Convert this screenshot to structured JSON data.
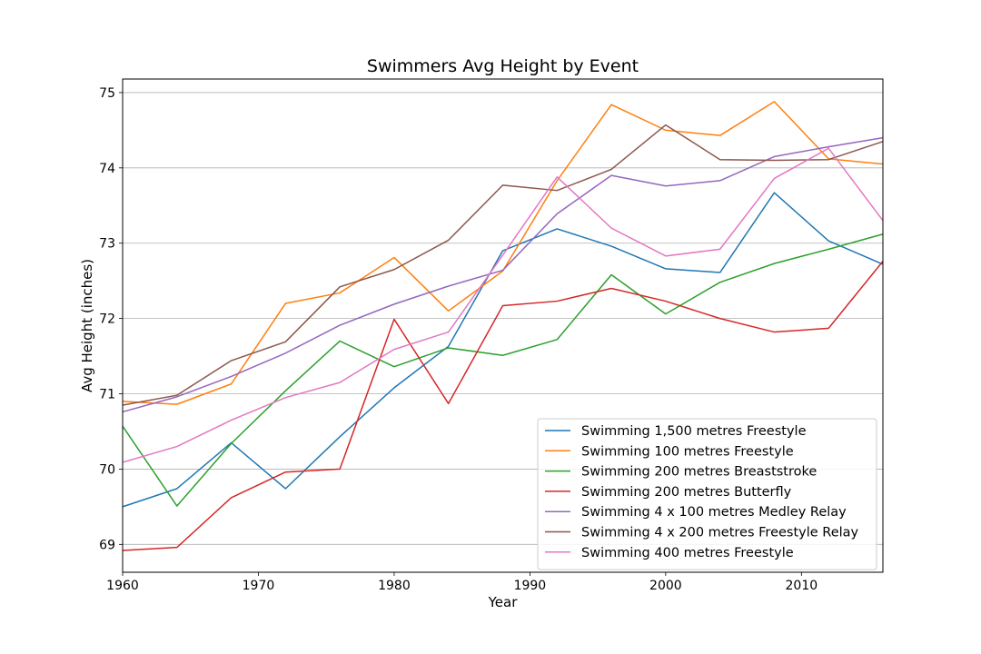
{
  "chart_data": {
    "type": "line",
    "title": "Swimmers Avg Height by Event",
    "xlabel": "Year",
    "ylabel": "Avg Height (inches)",
    "xlim": [
      1960,
      2016
    ],
    "ylim": [
      68.63,
      75.18
    ],
    "xticks": [
      1960,
      1970,
      1980,
      1990,
      2000,
      2010
    ],
    "yticks": [
      69,
      70,
      71,
      72,
      73,
      74,
      75
    ],
    "grid": "horizontal",
    "legend_position": "lower-right",
    "x": [
      1960,
      1964,
      1968,
      1972,
      1976,
      1980,
      1984,
      1988,
      1992,
      1996,
      2000,
      2004,
      2008,
      2012,
      2016
    ],
    "series": [
      {
        "name": "Swimming 1,500 metres Freestyle",
        "color": "#1f77b4",
        "values": [
          69.5,
          69.74,
          70.35,
          69.74,
          70.43,
          71.08,
          71.63,
          72.9,
          73.19,
          72.96,
          72.66,
          72.61,
          73.67,
          73.03,
          72.72
        ]
      },
      {
        "name": "Swimming 100 metres Freestyle",
        "color": "#ff7f0e",
        "values": [
          70.9,
          70.86,
          71.13,
          72.2,
          72.34,
          72.81,
          72.1,
          72.63,
          73.83,
          74.84,
          74.5,
          74.43,
          74.88,
          74.12,
          74.05
        ]
      },
      {
        "name": "Swimming 200 metres Breaststroke",
        "color": "#2ca02c",
        "values": [
          70.57,
          69.51,
          70.34,
          71.04,
          71.7,
          71.36,
          71.61,
          71.51,
          71.72,
          72.58,
          72.06,
          72.48,
          72.73,
          72.92,
          73.12
        ]
      },
      {
        "name": "Swimming 200 metres Butterfly",
        "color": "#d62728",
        "values": [
          68.92,
          68.96,
          69.62,
          69.96,
          70.0,
          71.99,
          70.87,
          72.17,
          72.23,
          72.4,
          72.23,
          72.0,
          71.82,
          71.87,
          72.76
        ]
      },
      {
        "name": "Swimming 4 x 100 metres Medley Relay",
        "color": "#9467bd",
        "values": [
          70.76,
          70.96,
          71.23,
          71.54,
          71.91,
          72.19,
          72.43,
          72.64,
          73.39,
          73.9,
          73.76,
          73.83,
          74.15,
          74.28,
          74.4
        ]
      },
      {
        "name": "Swimming 4 x 200 metres Freestyle Relay",
        "color": "#8c564b",
        "values": [
          70.85,
          70.98,
          71.44,
          71.69,
          72.42,
          72.65,
          73.04,
          73.77,
          73.7,
          73.98,
          74.57,
          74.11,
          74.1,
          74.11,
          74.35
        ]
      },
      {
        "name": "Swimming 400 metres Freestyle",
        "color": "#e377c2",
        "values": [
          70.09,
          70.3,
          70.65,
          70.95,
          71.15,
          71.59,
          71.82,
          72.84,
          73.88,
          73.2,
          72.83,
          72.92,
          73.86,
          74.26,
          73.3
        ]
      }
    ]
  }
}
